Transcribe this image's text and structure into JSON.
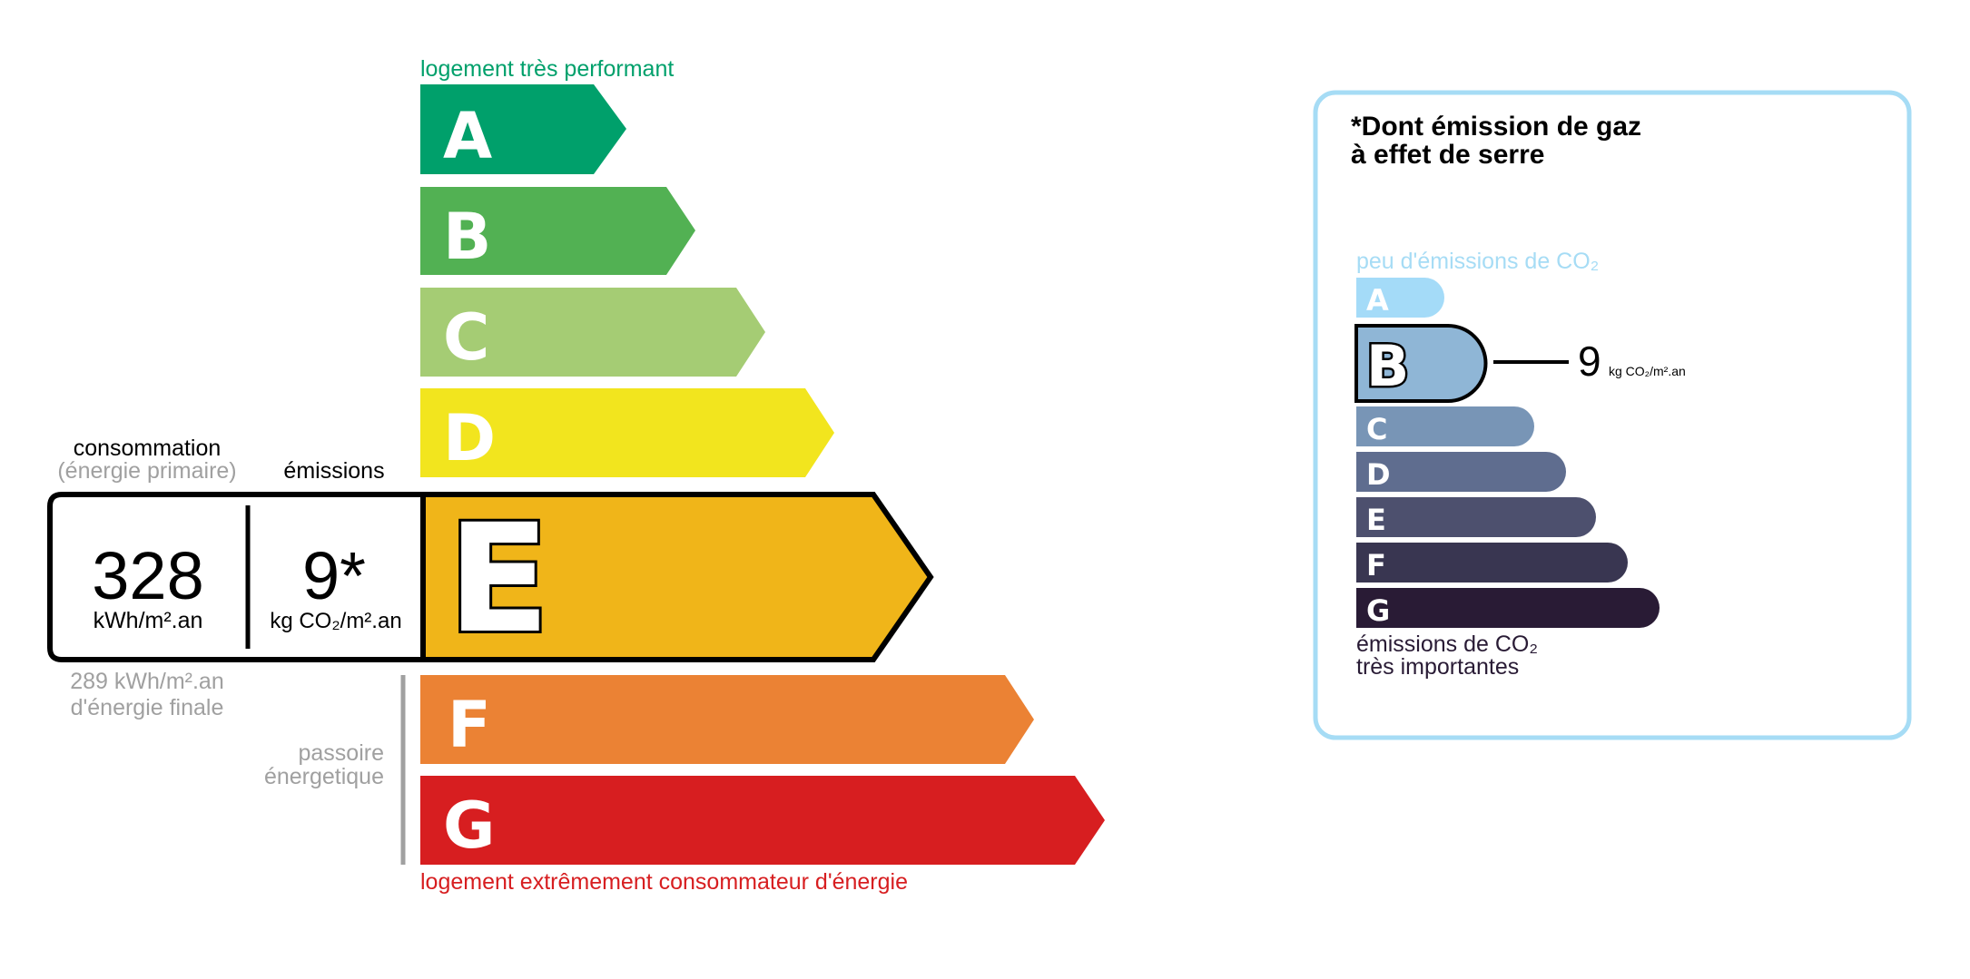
{
  "energy": {
    "top_label": "logement très performant",
    "bottom_label": "logement extrêmement consommateur d'énergie",
    "current_class": "E",
    "classes": [
      {
        "letter": "A",
        "color": "#00a06b"
      },
      {
        "letter": "B",
        "color": "#52b153"
      },
      {
        "letter": "C",
        "color": "#a5cc74"
      },
      {
        "letter": "D",
        "color": "#f2e51e"
      },
      {
        "letter": "E",
        "color": "#f0b519"
      },
      {
        "letter": "F",
        "color": "#eb8234"
      },
      {
        "letter": "G",
        "color": "#d71e20"
      }
    ],
    "consumption_label": "consommation",
    "consumption_sublabel": "(énergie primaire)",
    "emissions_label": "émissions",
    "consumption_value": "328",
    "consumption_unit": "kWh/m².an",
    "emissions_value": "9*",
    "emissions_unit": "kg CO₂/m².an",
    "final_energy_line1": "289 kWh/m².an",
    "final_energy_line2": "d'énergie finale",
    "passoire_line1": "passoire",
    "passoire_line2": "énergetique"
  },
  "ges": {
    "title_line1": "*Dont émission de gaz",
    "title_line2": "à effet de serre",
    "top_label": "peu d'émissions de CO₂",
    "bottom_label_line1": "émissions de CO₂",
    "bottom_label_line2": "très importantes",
    "current_class": "B",
    "value": "9",
    "unit": "kg CO₂/m².an",
    "border_color": "#a6dcf5",
    "classes": [
      {
        "letter": "A",
        "color": "#a4dbf8"
      },
      {
        "letter": "B",
        "color": "#8fb6d6"
      },
      {
        "letter": "C",
        "color": "#7895b6"
      },
      {
        "letter": "D",
        "color": "#5f6d8f"
      },
      {
        "letter": "E",
        "color": "#4d506e"
      },
      {
        "letter": "F",
        "color": "#393651"
      },
      {
        "letter": "G",
        "color": "#291b35"
      }
    ]
  }
}
